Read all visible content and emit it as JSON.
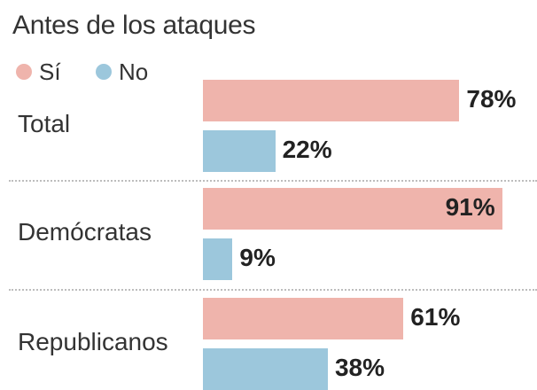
{
  "chart_data": {
    "type": "bar",
    "orientation": "horizontal",
    "title": "Antes de los ataques",
    "categories": [
      "Total",
      "Demócratas",
      "Republicanos"
    ],
    "series": [
      {
        "name": "Sí",
        "color": "#efb4ac",
        "values": [
          78,
          91,
          61
        ],
        "labels": [
          "78%",
          "91%",
          "61%"
        ]
      },
      {
        "name": "No",
        "color": "#9cc7dc",
        "values": [
          22,
          9,
          38
        ],
        "labels": [
          "22%",
          "9%",
          "38%"
        ]
      }
    ],
    "xlim": [
      0,
      100
    ],
    "grid": false,
    "legend": "top-left"
  }
}
